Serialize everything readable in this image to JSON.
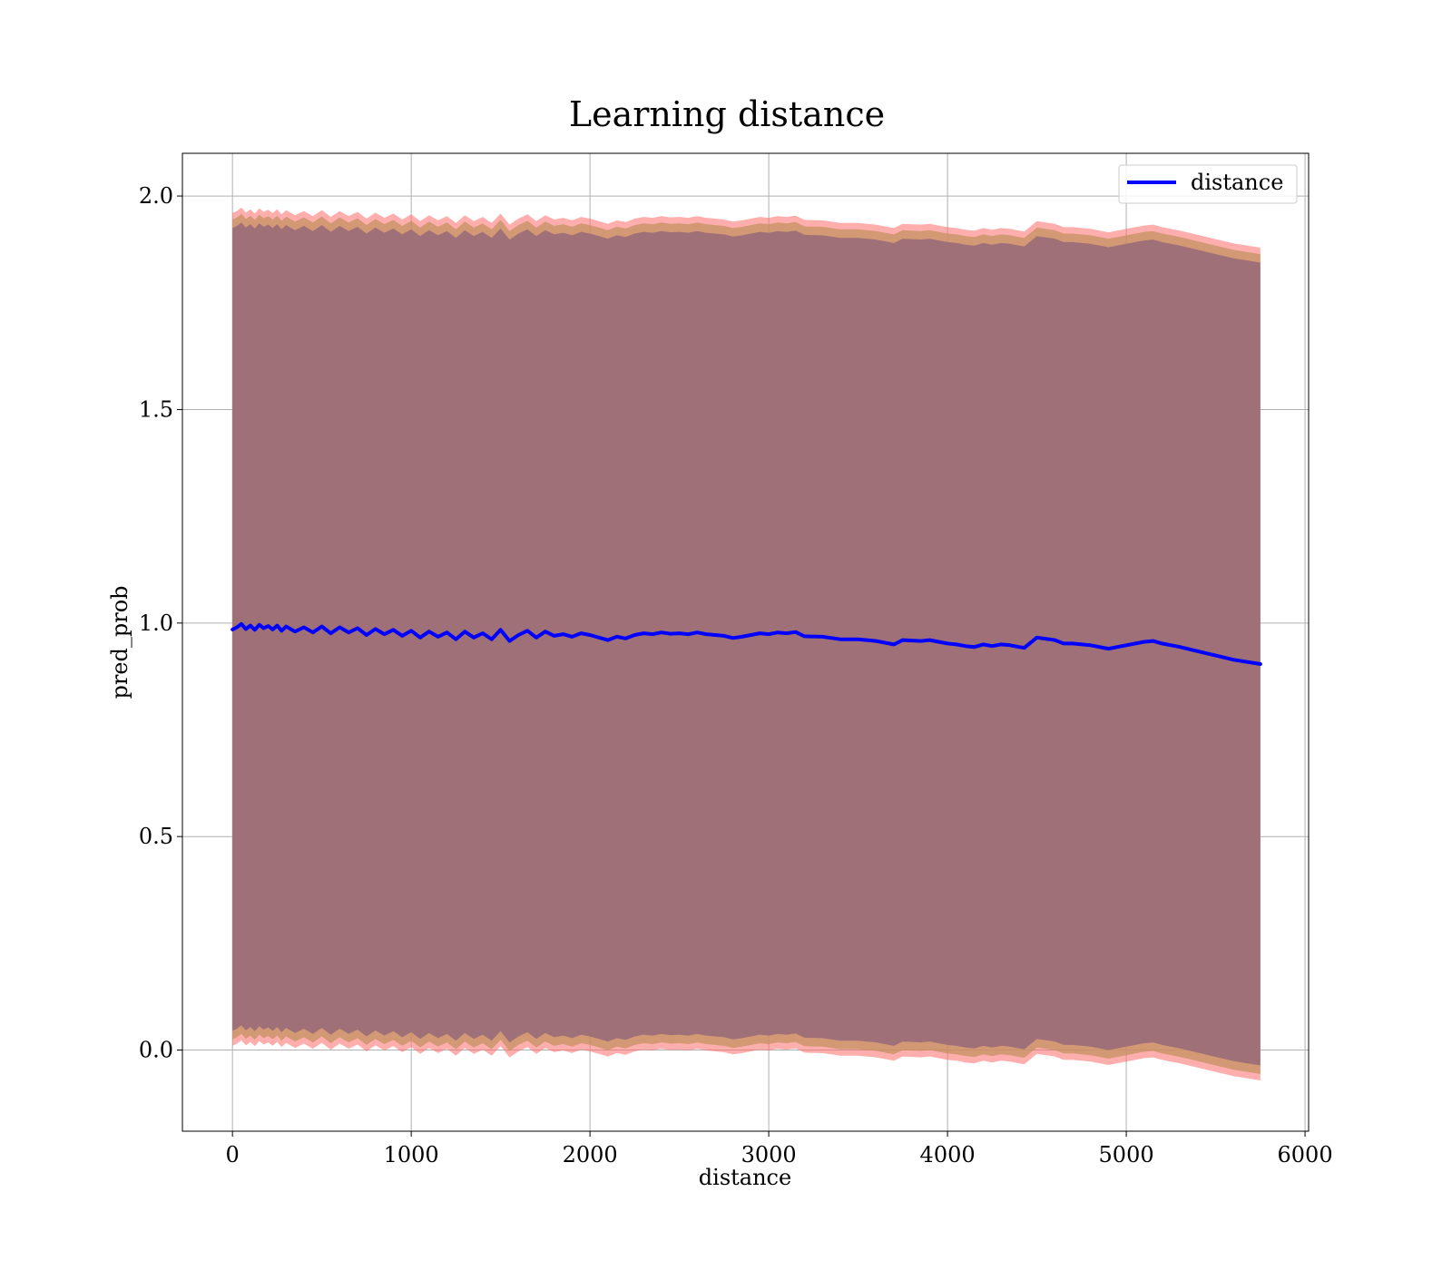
{
  "chart_data": {
    "type": "line",
    "title": "Learning distance",
    "xlabel": "distance",
    "ylabel": "pred_prob",
    "xlim": [
      -280,
      6020
    ],
    "ylim": [
      -0.19,
      2.1
    ],
    "xticks": [
      0,
      1000,
      2000,
      3000,
      4000,
      5000,
      6000
    ],
    "yticks": [
      0.0,
      0.5,
      1.0,
      1.5,
      2.0
    ],
    "xtick_labels": [
      "0",
      "1000",
      "2000",
      "3000",
      "4000",
      "5000",
      "6000"
    ],
    "ytick_labels": [
      "0.0",
      "0.5",
      "1.0",
      "1.5",
      "2.0"
    ],
    "grid": true,
    "legend_position": "top-right",
    "series": [
      {
        "name": "distance",
        "color": "#0000ff",
        "x": [
          0,
          25,
          50,
          75,
          100,
          125,
          150,
          175,
          200,
          225,
          250,
          275,
          300,
          350,
          400,
          450,
          500,
          550,
          600,
          650,
          700,
          750,
          800,
          850,
          900,
          950,
          1000,
          1050,
          1100,
          1150,
          1200,
          1250,
          1300,
          1350,
          1400,
          1450,
          1500,
          1550,
          1600,
          1650,
          1700,
          1750,
          1800,
          1850,
          1900,
          1950,
          2000,
          2050,
          2100,
          2150,
          2200,
          2250,
          2300,
          2350,
          2400,
          2450,
          2500,
          2550,
          2600,
          2650,
          2700,
          2750,
          2800,
          2850,
          2900,
          2950,
          3000,
          3050,
          3100,
          3150,
          3200,
          3300,
          3400,
          3500,
          3600,
          3700,
          3750,
          3850,
          3900,
          4000,
          4050,
          4100,
          4150,
          4200,
          4250,
          4300,
          4350,
          4400,
          4430,
          4500,
          4600,
          4650,
          4700,
          4800,
          4900,
          5000,
          5100,
          5150,
          5200,
          5300,
          5400,
          5500,
          5600,
          5750
        ],
        "y": [
          0.985,
          0.99,
          0.998,
          0.986,
          0.994,
          0.984,
          0.996,
          0.988,
          0.993,
          0.985,
          0.994,
          0.982,
          0.992,
          0.98,
          0.99,
          0.978,
          0.992,
          0.976,
          0.99,
          0.978,
          0.988,
          0.972,
          0.986,
          0.974,
          0.984,
          0.97,
          0.982,
          0.966,
          0.98,
          0.968,
          0.978,
          0.962,
          0.98,
          0.966,
          0.976,
          0.962,
          0.984,
          0.958,
          0.972,
          0.982,
          0.966,
          0.98,
          0.97,
          0.974,
          0.968,
          0.976,
          0.972,
          0.966,
          0.96,
          0.968,
          0.964,
          0.972,
          0.976,
          0.974,
          0.978,
          0.975,
          0.976,
          0.974,
          0.978,
          0.974,
          0.972,
          0.97,
          0.965,
          0.968,
          0.972,
          0.976,
          0.974,
          0.978,
          0.976,
          0.979,
          0.969,
          0.968,
          0.962,
          0.962,
          0.958,
          0.95,
          0.96,
          0.958,
          0.96,
          0.952,
          0.95,
          0.946,
          0.944,
          0.95,
          0.946,
          0.95,
          0.948,
          0.944,
          0.942,
          0.966,
          0.96,
          0.952,
          0.952,
          0.948,
          0.94,
          0.948,
          0.956,
          0.958,
          0.952,
          0.944,
          0.934,
          0.924,
          0.914,
          0.904
        ],
        "band_halfwidth": 0.95
      }
    ]
  }
}
